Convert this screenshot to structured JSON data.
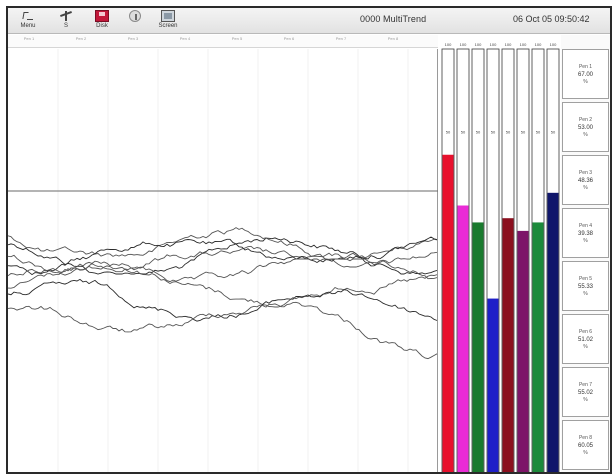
{
  "toolbar": {
    "buttons": [
      {
        "label": "Menu",
        "icon": "hand-pointer-icon"
      },
      {
        "label": "S",
        "icon": "scale-icon"
      },
      {
        "label": "Disk",
        "icon": "disk-icon"
      },
      {
        "label": "",
        "icon": "info-icon"
      },
      {
        "label": "Screen",
        "icon": "screen-icon"
      }
    ],
    "title": "0000 MultiTrend",
    "datetime": "06 Oct 05  09:50:42"
  },
  "channels": [
    {
      "name": "Pen 1",
      "value": "67.00",
      "unit": "%",
      "color": "#e8112d",
      "level": 0.75
    },
    {
      "name": "Pen 2",
      "value": "53.00",
      "unit": "%",
      "color": "#ea2bd6",
      "level": 0.63
    },
    {
      "name": "Pen 3",
      "value": "48.36",
      "unit": "%",
      "color": "#1a7a2e",
      "level": 0.59
    },
    {
      "name": "Pen 4",
      "value": "39.38",
      "unit": "%",
      "color": "#1f1fc8",
      "level": 0.41
    },
    {
      "name": "Pen 5",
      "value": "55.33",
      "unit": "%",
      "color": "#8b0f1e",
      "level": 0.6
    },
    {
      "name": "Pen 6",
      "value": "51.02",
      "unit": "%",
      "color": "#7d1468",
      "level": 0.57
    },
    {
      "name": "Pen 7",
      "value": "55.02",
      "unit": "%",
      "color": "#1c8a3b",
      "level": 0.59
    },
    {
      "name": "Pen 8",
      "value": "60.05",
      "unit": "%",
      "color": "#10166b",
      "level": 0.66
    }
  ],
  "bar_scale": {
    "top_label": "100",
    "mid_label": "50"
  }
}
